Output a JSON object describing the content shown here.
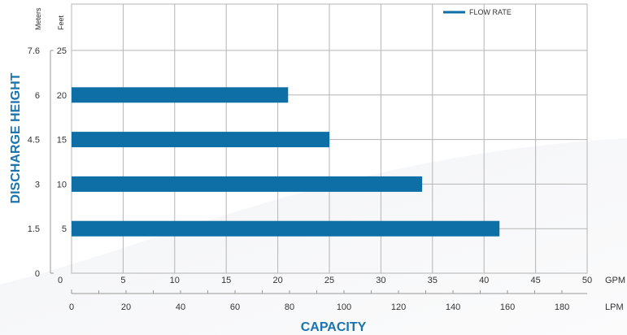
{
  "chart_data": {
    "type": "bar",
    "orientation": "horizontal",
    "title": "",
    "xlabel": "CAPACITY",
    "ylabel": "DISCHARGE HEIGHT",
    "x_units": {
      "primary": "GPM",
      "secondary": "LPM"
    },
    "y_units": {
      "primary": "Feet",
      "secondary": "Meters"
    },
    "xlim": [
      0,
      50
    ],
    "ylim": [
      0,
      25
    ],
    "x_ticks": [
      "0",
      "5",
      "10",
      "15",
      "20",
      "25",
      "30",
      "35",
      "40",
      "45",
      "50"
    ],
    "x_ticks_values": [
      0,
      5,
      10,
      15,
      20,
      25,
      30,
      35,
      40,
      45,
      50
    ],
    "x2_ticks": [
      "0",
      "20",
      "40",
      "60",
      "80",
      "100",
      "120",
      "140",
      "160",
      "180"
    ],
    "x2_ticks_values": [
      0,
      20,
      40,
      60,
      80,
      100,
      120,
      140,
      160,
      180
    ],
    "y_ticks": [
      "5",
      "10",
      "15",
      "20",
      "25"
    ],
    "y_ticks_values": [
      5,
      10,
      15,
      20,
      25
    ],
    "y2_ticks": [
      "0",
      "1.5",
      "3",
      "4.5",
      "6",
      "7.6"
    ],
    "y2_ticks_values": [
      0,
      5,
      10,
      15,
      20,
      25
    ],
    "grid": true,
    "legend_position": "top-right",
    "series": [
      {
        "name": "FLOW RATE",
        "color": "#0e6fa6",
        "points": [
          {
            "height": 5,
            "capacity": 41.5
          },
          {
            "height": 10,
            "capacity": 34
          },
          {
            "height": 15,
            "capacity": 25
          },
          {
            "height": 20,
            "capacity": 21
          }
        ]
      }
    ]
  }
}
